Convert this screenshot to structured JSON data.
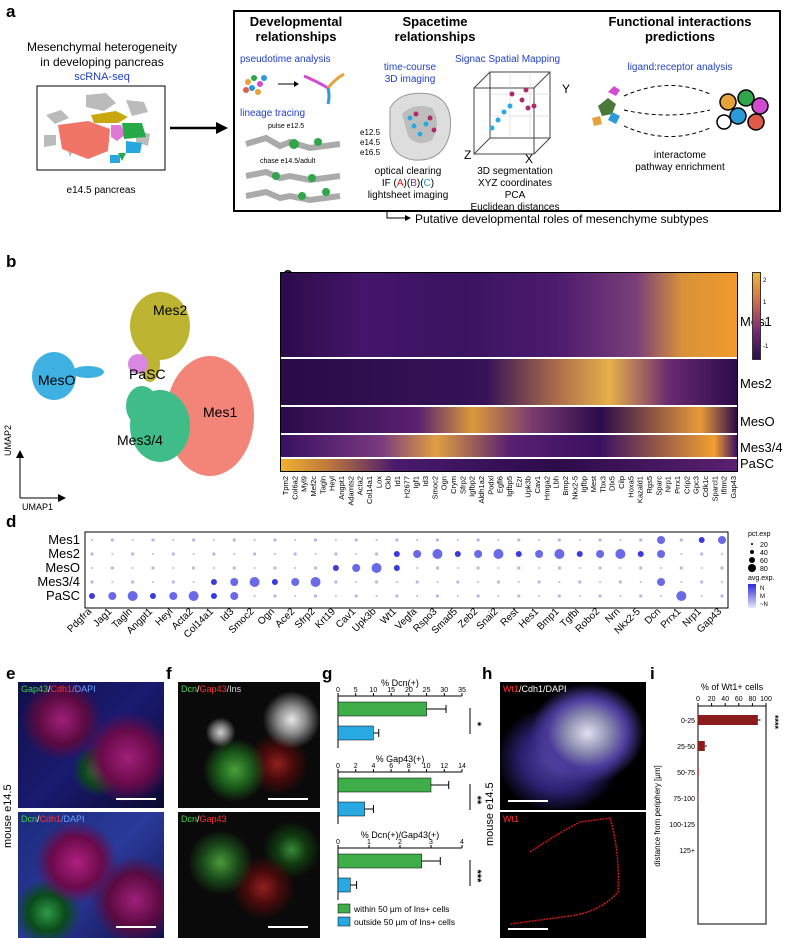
{
  "panels": {
    "a": "a",
    "b": "b",
    "c": "c",
    "d": "d",
    "e": "e",
    "f": "f",
    "g": "g",
    "h": "h",
    "i": "i"
  },
  "panel_a": {
    "intro_line1": "Mesenchymal heterogeneity",
    "intro_line2": "in developing pancreas",
    "scrna": "scRNA-seq",
    "pancreas_label": "e14.5 pancreas",
    "dev_title_line1": "Developmental",
    "dev_title_line2": "relationships",
    "pseudotime": "pseudotime analysis",
    "lineage": "lineage tracing",
    "pulse": "pulse e12.5",
    "chase": "chase e14.5/adult",
    "spacetime_title_line1": "Spacetime",
    "spacetime_title_line2": "relationships",
    "timecourse": "time-course",
    "imaging3d": "3D imaging",
    "stages": [
      "e12.5",
      "e14.5",
      "e16.5"
    ],
    "optical": "optical clearing",
    "if_prefix": "IF (",
    "if_a": "A",
    "if_b": "B",
    "if_c": "C",
    "if_suffix": ")",
    "lightsheet": "lightsheet imaging",
    "signac": "Signac Spatial Mapping",
    "axis_y": "Y",
    "axis_z": "Z",
    "axis_x": "X",
    "seg": "3D segmentation",
    "xyz": "XYZ coordinates",
    "pca": "PCA",
    "euclid": "Euclidean distances",
    "func_title_line1": "Functional interactions",
    "func_title_line2": "predictions",
    "ligand": "ligand:receptor analysis",
    "interactome": "interactome",
    "pathway": "pathway enrichment",
    "putative": "Putative developmental roles of mesenchyme subtypes"
  },
  "panel_b": {
    "clusters": [
      "Mes2",
      "PaSC",
      "MesO",
      "Mes1",
      "Mes3/4"
    ],
    "umap1": "UMAP1",
    "umap2": "UMAP2"
  },
  "panel_c": {
    "row_labels": [
      "Mes1",
      "Mes2",
      "MesO",
      "Mes3/4",
      "PaSC"
    ],
    "genes": [
      "Tpm2",
      "Col6a2",
      "Myl9",
      "Mef2c",
      "Tagln",
      "Heyl",
      "Angpt1",
      "Adamts2",
      "Acta2",
      "Col14a1",
      "Lox",
      "Ckb",
      "Id1",
      "H2677",
      "Igf1",
      "Id3",
      "Smoc2",
      "Ogn",
      "Crym",
      "Sfrp2",
      "Igfbp2",
      "Aldh1a2",
      "Podxl",
      "Egfl6",
      "Igfbp5",
      "Ezr",
      "Upk3b",
      "Cav1",
      "Hmga2",
      "Lbh",
      "Bmp2",
      "Nkx2-5",
      "Igfbp",
      "Mest",
      "Tbx3",
      "Dlx5",
      "Cilp",
      "Hoxa5",
      "Kazald1",
      "Rgs5",
      "Sparc",
      "Nrp1",
      "Prrx1",
      "Crip2",
      "Gpc3",
      "Cdk1c",
      "Sparcl1",
      "Ifitm2",
      "Gap43"
    ],
    "colorbar_ticks": [
      "2",
      "1",
      "0",
      "-1"
    ]
  },
  "panel_d": {
    "rows": [
      "Mes1",
      "Mes2",
      "MesO",
      "Mes3/4",
      "PaSC"
    ],
    "genes": [
      "Pdgfra",
      "Jag1",
      "Tagln",
      "Angpt1",
      "Heyl",
      "Acta2",
      "Col14a1",
      "Id3",
      "Smoc2",
      "Ogn",
      "Ace2",
      "Sfrp2",
      "Krt19",
      "Cav1",
      "Upk3b",
      "Wt1",
      "Vegfa",
      "Rspo3",
      "Smad5",
      "Zeb2",
      "Snai2",
      "Rest",
      "Hes1",
      "Bmp1",
      "Tgfbi",
      "Robo2",
      "Nrn",
      "Nkx2-5",
      "Dcn",
      "Prrx1",
      "Nrp1",
      "Gap43"
    ],
    "legend_pct_title": "pct.exp",
    "legend_pct": [
      "20",
      "40",
      "60",
      "80"
    ],
    "legend_avg_title": "avg.exp.",
    "legend_avg": [
      "N",
      "M",
      "~N"
    ]
  },
  "panel_e": {
    "top_labels": [
      "Gap43",
      "/",
      "Cdh1",
      "/DAPI"
    ],
    "bottom_labels": [
      "Dcn",
      "/",
      "Cdh1",
      "/DAPI"
    ],
    "side": "mouse e14.5"
  },
  "panel_f": {
    "top_labels": [
      "Dcn",
      "/",
      "Gap43",
      "/Ins"
    ],
    "bottom_labels": [
      "Dcn",
      "/",
      "Gap43"
    ]
  },
  "panel_g": {
    "chart_data": [
      {
        "type": "bar",
        "title": "% Dcn(+)",
        "categories": [
          "within 50 µm of Ins+ cells",
          "outside 50 µm of Ins+ cells"
        ],
        "values": [
          25,
          10
        ],
        "errors": [
          5.5,
          1.5
        ],
        "xlim": [
          0,
          35
        ],
        "ticks": [
          "0",
          "5",
          "10",
          "15",
          "20",
          "25",
          "30",
          "35"
        ],
        "significance": "*"
      },
      {
        "type": "bar",
        "title": "% Gap43(+)",
        "categories": [
          "within 50 µm of Ins+ cells",
          "outside 50 µm of Ins+ cells"
        ],
        "values": [
          10.5,
          3
        ],
        "errors": [
          2,
          1
        ],
        "xlim": [
          0,
          14
        ],
        "ticks": [
          "0",
          "2",
          "4",
          "6",
          "8",
          "10",
          "12",
          "14"
        ],
        "significance": "**"
      },
      {
        "type": "bar",
        "title": "% Dcn(+)/Gap43(+)",
        "categories": [
          "within 50 µm of Ins+ cells",
          "outside 50 µm of Ins+ cells"
        ],
        "values": [
          2.7,
          0.4
        ],
        "errors": [
          0.6,
          0.2
        ],
        "xlim": [
          0,
          4
        ],
        "ticks": [
          "0",
          "1",
          "2",
          "3",
          "4"
        ],
        "significance": "***"
      }
    ],
    "legend": [
      "within 50 µm of Ins+ cells",
      "outside 50 µm of Ins+ cells"
    ],
    "colors": {
      "within": "#3fae49",
      "outside": "#29a9e1"
    }
  },
  "panel_h": {
    "top_labels": [
      "Wt1",
      "/Cdh1/DAPI"
    ],
    "bottom_label": "Wt1",
    "side": "mouse e14.5"
  },
  "panel_i": {
    "chart_data": {
      "type": "bar",
      "title": "% of Wt1+ cells",
      "categories": [
        "0-25",
        "25-50",
        "50-75",
        "75-100",
        "100-125",
        "125+"
      ],
      "values": [
        88,
        10,
        1,
        0.5,
        0,
        0
      ],
      "errors": [
        4,
        3,
        0.5,
        0.3,
        0,
        0
      ],
      "xlim": [
        0,
        100
      ],
      "ticks": [
        "0",
        "20",
        "40",
        "60",
        "80",
        "100"
      ],
      "ylabel": "distance from periphery [µm]",
      "significance": "****"
    },
    "color": "#8b1c1c"
  }
}
